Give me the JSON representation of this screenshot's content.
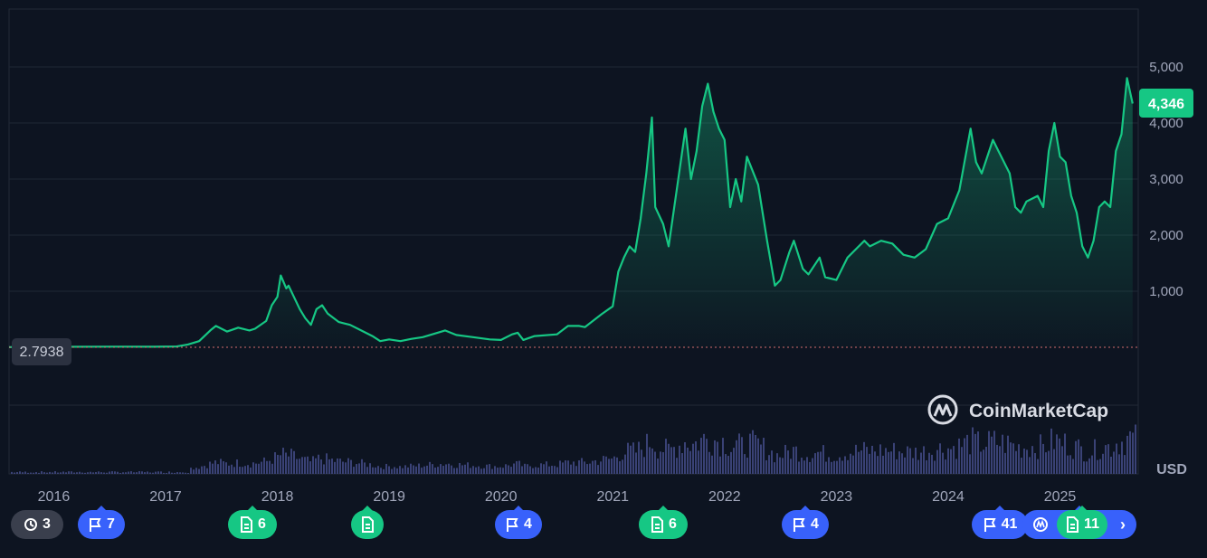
{
  "chart_data": {
    "type": "area",
    "currency_label": "USD",
    "current_price_label": "4,346",
    "baseline_price_label": "2.7938",
    "watermark": "CoinMarketCap",
    "y_ticks": [
      "1,000",
      "2,000",
      "3,000",
      "4,000",
      "5,000"
    ],
    "y_tick_values": [
      1000,
      2000,
      3000,
      4000,
      5000
    ],
    "ylim": [
      0,
      5500
    ],
    "x_ticks": [
      "2016",
      "2017",
      "2018",
      "2019",
      "2020",
      "2021",
      "2022",
      "2023",
      "2024",
      "2025"
    ],
    "x_range": [
      2015.6,
      2025.7
    ],
    "series": [
      {
        "values": [
          [
            2015.6,
            3
          ],
          [
            2016.0,
            8
          ],
          [
            2016.5,
            12
          ],
          [
            2016.9,
            10
          ],
          [
            2017.1,
            15
          ],
          [
            2017.2,
            50
          ],
          [
            2017.3,
            110
          ],
          [
            2017.4,
            300
          ],
          [
            2017.45,
            380
          ],
          [
            2017.55,
            280
          ],
          [
            2017.65,
            350
          ],
          [
            2017.75,
            300
          ],
          [
            2017.8,
            330
          ],
          [
            2017.9,
            470
          ],
          [
            2017.95,
            750
          ],
          [
            2018.0,
            900
          ],
          [
            2018.03,
            1280
          ],
          [
            2018.08,
            1050
          ],
          [
            2018.1,
            1100
          ],
          [
            2018.2,
            680
          ],
          [
            2018.25,
            520
          ],
          [
            2018.3,
            400
          ],
          [
            2018.35,
            680
          ],
          [
            2018.4,
            750
          ],
          [
            2018.45,
            600
          ],
          [
            2018.55,
            450
          ],
          [
            2018.65,
            400
          ],
          [
            2018.75,
            300
          ],
          [
            2018.85,
            200
          ],
          [
            2018.92,
            110
          ],
          [
            2019.0,
            140
          ],
          [
            2019.1,
            110
          ],
          [
            2019.2,
            150
          ],
          [
            2019.3,
            180
          ],
          [
            2019.45,
            270
          ],
          [
            2019.5,
            300
          ],
          [
            2019.6,
            220
          ],
          [
            2019.75,
            180
          ],
          [
            2019.9,
            140
          ],
          [
            2020.0,
            130
          ],
          [
            2020.1,
            230
          ],
          [
            2020.15,
            260
          ],
          [
            2020.2,
            130
          ],
          [
            2020.3,
            200
          ],
          [
            2020.5,
            230
          ],
          [
            2020.6,
            380
          ],
          [
            2020.7,
            380
          ],
          [
            2020.75,
            360
          ],
          [
            2020.9,
            590
          ],
          [
            2021.0,
            730
          ],
          [
            2021.05,
            1350
          ],
          [
            2021.1,
            1600
          ],
          [
            2021.15,
            1800
          ],
          [
            2021.2,
            1700
          ],
          [
            2021.25,
            2300
          ],
          [
            2021.3,
            3100
          ],
          [
            2021.35,
            4100
          ],
          [
            2021.38,
            2500
          ],
          [
            2021.45,
            2200
          ],
          [
            2021.5,
            1800
          ],
          [
            2021.55,
            2500
          ],
          [
            2021.6,
            3200
          ],
          [
            2021.65,
            3900
          ],
          [
            2021.7,
            3000
          ],
          [
            2021.75,
            3500
          ],
          [
            2021.8,
            4300
          ],
          [
            2021.85,
            4700
          ],
          [
            2021.9,
            4200
          ],
          [
            2021.95,
            3900
          ],
          [
            2022.0,
            3700
          ],
          [
            2022.05,
            2500
          ],
          [
            2022.1,
            3000
          ],
          [
            2022.15,
            2600
          ],
          [
            2022.2,
            3400
          ],
          [
            2022.3,
            2900
          ],
          [
            2022.38,
            1900
          ],
          [
            2022.45,
            1100
          ],
          [
            2022.5,
            1200
          ],
          [
            2022.58,
            1700
          ],
          [
            2022.62,
            1900
          ],
          [
            2022.7,
            1400
          ],
          [
            2022.75,
            1300
          ],
          [
            2022.85,
            1600
          ],
          [
            2022.9,
            1250
          ],
          [
            2023.0,
            1200
          ],
          [
            2023.1,
            1600
          ],
          [
            2023.2,
            1800
          ],
          [
            2023.25,
            1900
          ],
          [
            2023.3,
            1800
          ],
          [
            2023.4,
            1900
          ],
          [
            2023.5,
            1850
          ],
          [
            2023.6,
            1650
          ],
          [
            2023.7,
            1600
          ],
          [
            2023.8,
            1750
          ],
          [
            2023.9,
            2200
          ],
          [
            2024.0,
            2300
          ],
          [
            2024.1,
            2800
          ],
          [
            2024.2,
            3900
          ],
          [
            2024.25,
            3300
          ],
          [
            2024.3,
            3100
          ],
          [
            2024.4,
            3700
          ],
          [
            2024.45,
            3500
          ],
          [
            2024.5,
            3300
          ],
          [
            2024.55,
            3100
          ],
          [
            2024.6,
            2500
          ],
          [
            2024.65,
            2400
          ],
          [
            2024.7,
            2600
          ],
          [
            2024.8,
            2700
          ],
          [
            2024.85,
            2500
          ],
          [
            2024.9,
            3500
          ],
          [
            2024.95,
            4000
          ],
          [
            2025.0,
            3400
          ],
          [
            2025.05,
            3300
          ],
          [
            2025.1,
            2700
          ],
          [
            2025.15,
            2400
          ],
          [
            2025.2,
            1800
          ],
          [
            2025.25,
            1600
          ],
          [
            2025.3,
            1900
          ],
          [
            2025.35,
            2500
          ],
          [
            2025.4,
            2600
          ],
          [
            2025.45,
            2500
          ],
          [
            2025.5,
            3500
          ],
          [
            2025.55,
            3800
          ],
          [
            2025.6,
            4800
          ],
          [
            2025.65,
            4346
          ]
        ]
      }
    ]
  },
  "event_markers": [
    {
      "kind": "history",
      "label": "3"
    },
    {
      "kind": "flag",
      "label": "7"
    },
    {
      "kind": "doc",
      "label": "6"
    },
    {
      "kind": "doc",
      "label": ""
    },
    {
      "kind": "flag",
      "label": "4"
    },
    {
      "kind": "doc",
      "label": "6"
    },
    {
      "kind": "flag",
      "label": "4"
    },
    {
      "kind": "flag",
      "label": "41"
    },
    {
      "kind": "doc",
      "label": "11"
    }
  ],
  "colors": {
    "background": "#0d1421",
    "line": "#16c784",
    "price_badge": "#16c784",
    "baseline_badge": "#2b3140",
    "flag_marker": "#3861fb",
    "doc_marker": "#16c784",
    "volume_bar": "#3a4276"
  },
  "icons": [
    "history-icon",
    "flag-icon",
    "document-icon",
    "coinmarketcap-logo-icon",
    "chevron-right-icon"
  ]
}
